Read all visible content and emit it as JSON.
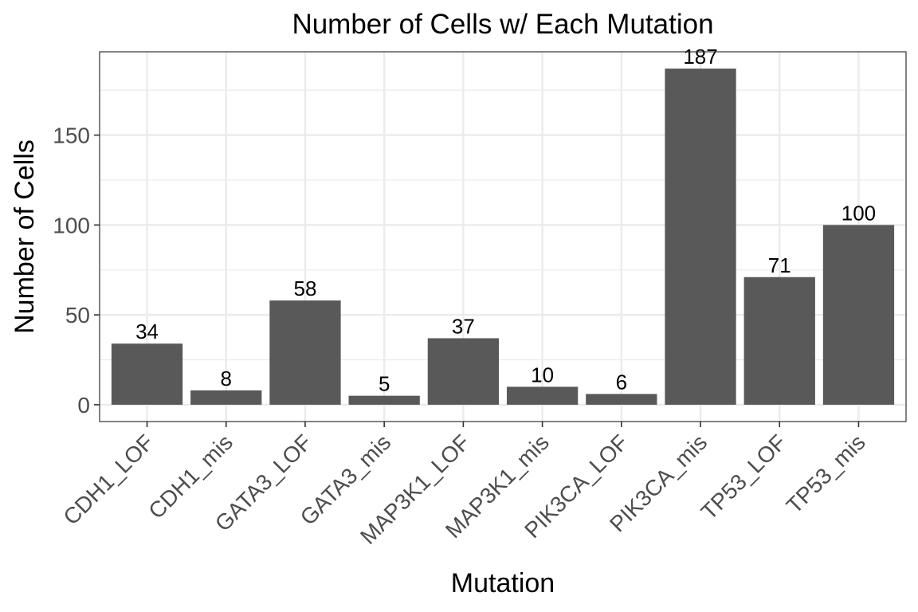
{
  "chart_data": {
    "type": "bar",
    "title": "Number of Cells w/ Each Mutation",
    "xlabel": "Mutation",
    "ylabel": "Number of Cells",
    "categories": [
      "CDH1_LOF",
      "CDH1_mis",
      "GATA3_LOF",
      "GATA3_mis",
      "MAP3K1_LOF",
      "MAP3K1_mis",
      "PIK3CA_LOF",
      "PIK3CA_mis",
      "TP53_LOF",
      "TP53_mis"
    ],
    "values": [
      34,
      8,
      58,
      5,
      37,
      10,
      6,
      187,
      71,
      100
    ],
    "data_labels": [
      "34",
      "8",
      "58",
      "5",
      "37",
      "10",
      "6",
      "187",
      "71",
      "100"
    ],
    "ylim": [
      -9.35,
      196.35
    ],
    "yticks": [
      0,
      50,
      100,
      150
    ],
    "ytick_labels": [
      "0",
      "50",
      "100",
      "150"
    ],
    "grid": true,
    "legend": "none",
    "colors": {
      "bar": "#595959",
      "grid": "#ebebeb",
      "panel_border": "#333333",
      "tick_text": "#4d4d4d"
    }
  }
}
